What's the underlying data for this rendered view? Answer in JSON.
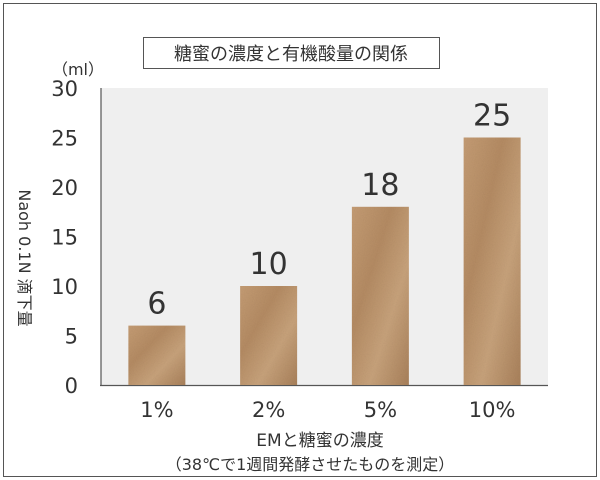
{
  "chart_data": {
    "type": "bar",
    "title": "糖蜜の濃度と有機酸量の関係",
    "unit_label": "（ml）",
    "ylabel": "Naoh 0.1N 滴下量",
    "xlabel": "EMと糖蜜の濃度",
    "xlabel_sub": "（38℃で1週間発酵させたものを測定）",
    "categories": [
      "1%",
      "2%",
      "5%",
      "10%"
    ],
    "values": [
      6,
      10,
      18,
      25
    ],
    "data_labels": [
      "6",
      "10",
      "18",
      "25"
    ],
    "ylim": [
      0,
      30
    ],
    "yticks": [
      0,
      5,
      10,
      15,
      20,
      25,
      30
    ],
    "grid": false,
    "legend": "none",
    "colors": {
      "plot_bg": "#efefef",
      "bar": "#b8906a",
      "bar_light": "#cda883",
      "bar_dark": "#a57c56",
      "frame": "#555555",
      "text": "#333333"
    }
  }
}
